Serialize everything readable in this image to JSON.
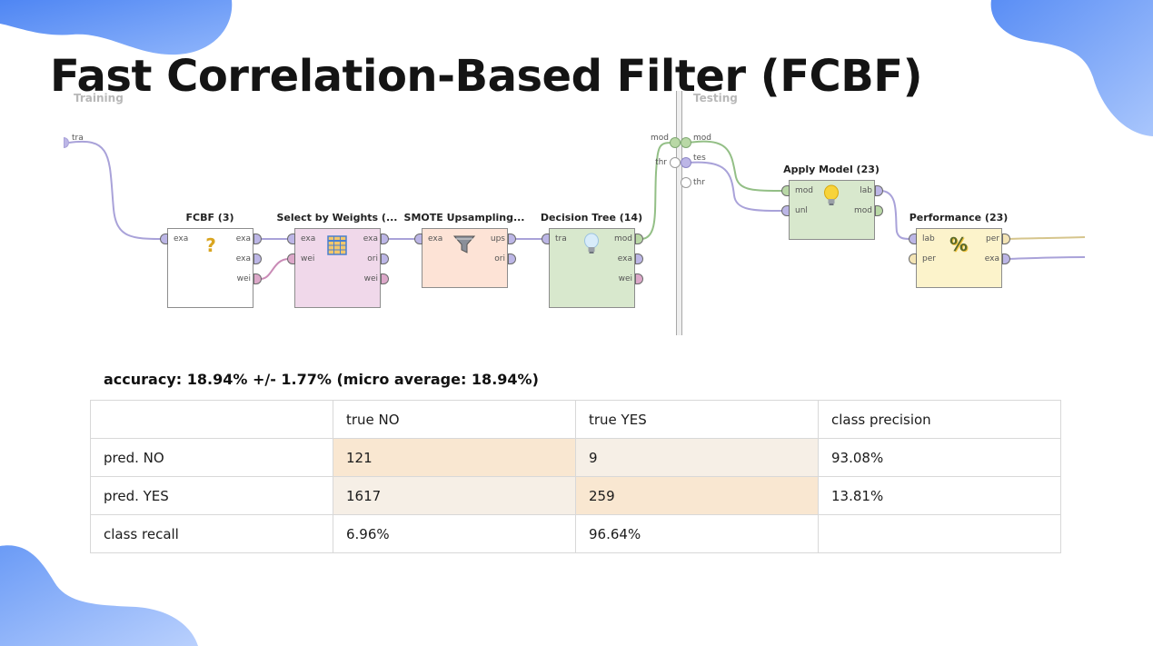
{
  "slide": {
    "title": "Fast Correlation-Based Filter (FCBF)",
    "colors": {
      "blob": "#5d8ff5",
      "blob_light": "#a8c4fb"
    }
  },
  "process": {
    "training_label": "Training",
    "testing_label": "Testing",
    "input_port_label": "tra",
    "model_port_label": "mod",
    "threshold_port_label": "thr",
    "right_inputs": [
      "mod",
      "tes",
      "thr"
    ],
    "operators": {
      "fcbf": {
        "name": "FCBF (3)",
        "icon": "question-icon",
        "color": "#ffffff",
        "in": [
          "exa"
        ],
        "out": [
          "exa",
          "exa",
          "wei"
        ]
      },
      "select_weights": {
        "name": "Select by Weights (...",
        "icon": "table-icon",
        "color": "#f0d8ea",
        "in": [
          "exa",
          "wei"
        ],
        "out": [
          "exa",
          "ori",
          "wei"
        ]
      },
      "smote": {
        "name": "SMOTE Upsampling...",
        "icon": "filter-funnel-icon",
        "color": "#fde3d6",
        "in": [
          "exa"
        ],
        "out": [
          "ups",
          "ori"
        ]
      },
      "decision_tree": {
        "name": "Decision Tree (14)",
        "icon": "lightbulb-icon",
        "color": "#d8e8cd",
        "in": [
          "tra"
        ],
        "out": [
          "mod",
          "exa",
          "wei"
        ]
      },
      "apply_model": {
        "name": "Apply Model (23)",
        "icon": "lightbulb-icon",
        "color": "#d8e8cd",
        "in": [
          "mod",
          "unl"
        ],
        "out": [
          "lab",
          "mod"
        ]
      },
      "performance": {
        "name": "Performance (23)",
        "icon": "percent-icon",
        "color": "#fcf3cb",
        "in": [
          "lab",
          "per"
        ],
        "out": [
          "per",
          "exa"
        ]
      }
    }
  },
  "results": {
    "accuracy": "accuracy: 18.94% +/- 1.77% (micro average: 18.94%)",
    "columns": [
      "",
      "true NO",
      "true YES",
      "class precision"
    ],
    "rows": [
      [
        "pred. NO",
        "121",
        "9",
        "93.08%"
      ],
      [
        "pred. YES",
        "1617",
        "259",
        "13.81%"
      ],
      [
        "class recall",
        "6.96%",
        "96.64%",
        ""
      ]
    ]
  }
}
